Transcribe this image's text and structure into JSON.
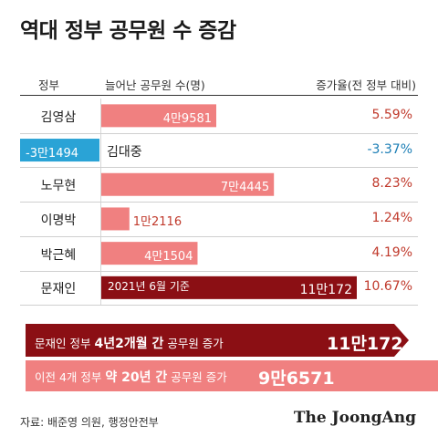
{
  "title": "역대 정부 공무원 수 증감",
  "header": {
    "col_government": "정부",
    "col_increase": "늘어난 공무원 수(명)",
    "col_rate": "증가율(전 정부 대비)"
  },
  "colors": {
    "positive_bar": "#f08080",
    "negative_bar": "#2aa3d6",
    "moon_bar": "#8b0f14",
    "positive_text": "#c0392b",
    "negative_text": "#1a7db5",
    "arrow_dark": "#8b0f14",
    "arrow_light": "#f08080"
  },
  "chart_data": {
    "type": "bar",
    "title": "역대 정부 공무원 수 증감",
    "categories": [
      "김영삼",
      "김대중",
      "노무현",
      "이명박",
      "박근혜",
      "문재인"
    ],
    "values": [
      49581,
      -31494,
      74445,
      12116,
      41504,
      110172
    ],
    "value_labels": [
      "4만9581",
      "-3만1494",
      "7만4445",
      "1만2116",
      "4만1504",
      "11만172"
    ],
    "rates": [
      "5.59%",
      "-3.37%",
      "8.23%",
      "1.24%",
      "4.19%",
      "10.67%"
    ],
    "annotation": "2021년 6월 기준"
  },
  "summary": {
    "moon_prefix": "문재인 정부 ",
    "moon_bold": "4년2개월 간",
    "moon_suffix": " 공무원 증가",
    "moon_value": "11만172",
    "prev_prefix": "이전 4개 정부 ",
    "prev_bold": "약 20년 간",
    "prev_suffix": " 공무원 증가",
    "prev_value": "9만6571"
  },
  "source": "자료: 배준영 의원, 행정안전부",
  "logo": "The JoongAng"
}
